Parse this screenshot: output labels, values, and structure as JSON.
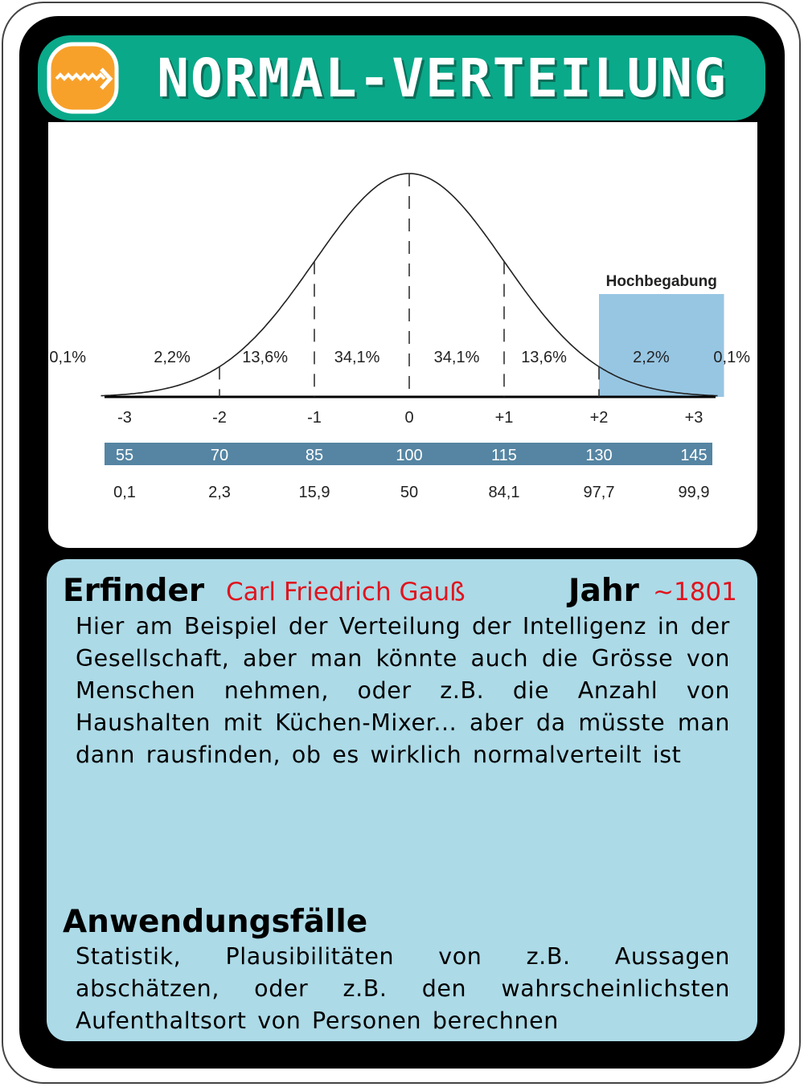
{
  "card": {
    "title": "NORMAL-VERTEILUNG",
    "title_icon": "wave-arrow-icon",
    "colors": {
      "title_bar": "#0aa98a",
      "icon_bg": "#f7a12b",
      "info_panel": "#acdae7",
      "frame": "#000000",
      "accent_red": "#e0141e",
      "score_band": "#5585a3",
      "highlight": "#97c6e3"
    }
  },
  "chart_data": {
    "type": "area",
    "title": "",
    "x": [
      "-3",
      "-2",
      "-1",
      "0",
      "+1",
      "+2",
      "+3"
    ],
    "percent_segments": [
      "0,1%",
      "2,2%",
      "13,6%",
      "34,1%",
      "34,1%",
      "13,6%",
      "2,2%",
      "0,1%"
    ],
    "iq_scores": [
      "55",
      "70",
      "85",
      "100",
      "115",
      "130",
      "145"
    ],
    "percentiles": [
      "0,1",
      "2,3",
      "15,9",
      "50",
      "84,1",
      "97,7",
      "99,9"
    ],
    "highlight": {
      "label": "Hochbegabung",
      "x_from": 2,
      "x_to": 3.25
    },
    "xlim": [
      -3.25,
      3.25
    ]
  },
  "info": {
    "inventor_label": "Erfinder",
    "inventor_name": "Carl Friedrich Gauß",
    "year_label": "Jahr",
    "year_value": "~1801",
    "description": "Hier am Beispiel der Verteilung der Intelligenz in der Gesellschaft, aber man könnte auch die Grösse von Menschen nehmen, oder z.B. die Anzahl von Haushalten mit Küchen-Mixer... aber da müsste man dann rausfinden, ob es wirklich normalverteilt ist",
    "use_cases_label": "Anwendungsfälle",
    "use_cases": "Statistik, Plausibilitäten von z.B. Aussagen abschätzen, oder z.B. den wahrscheinlichsten Aufenthaltsort von Personen berechnen"
  }
}
